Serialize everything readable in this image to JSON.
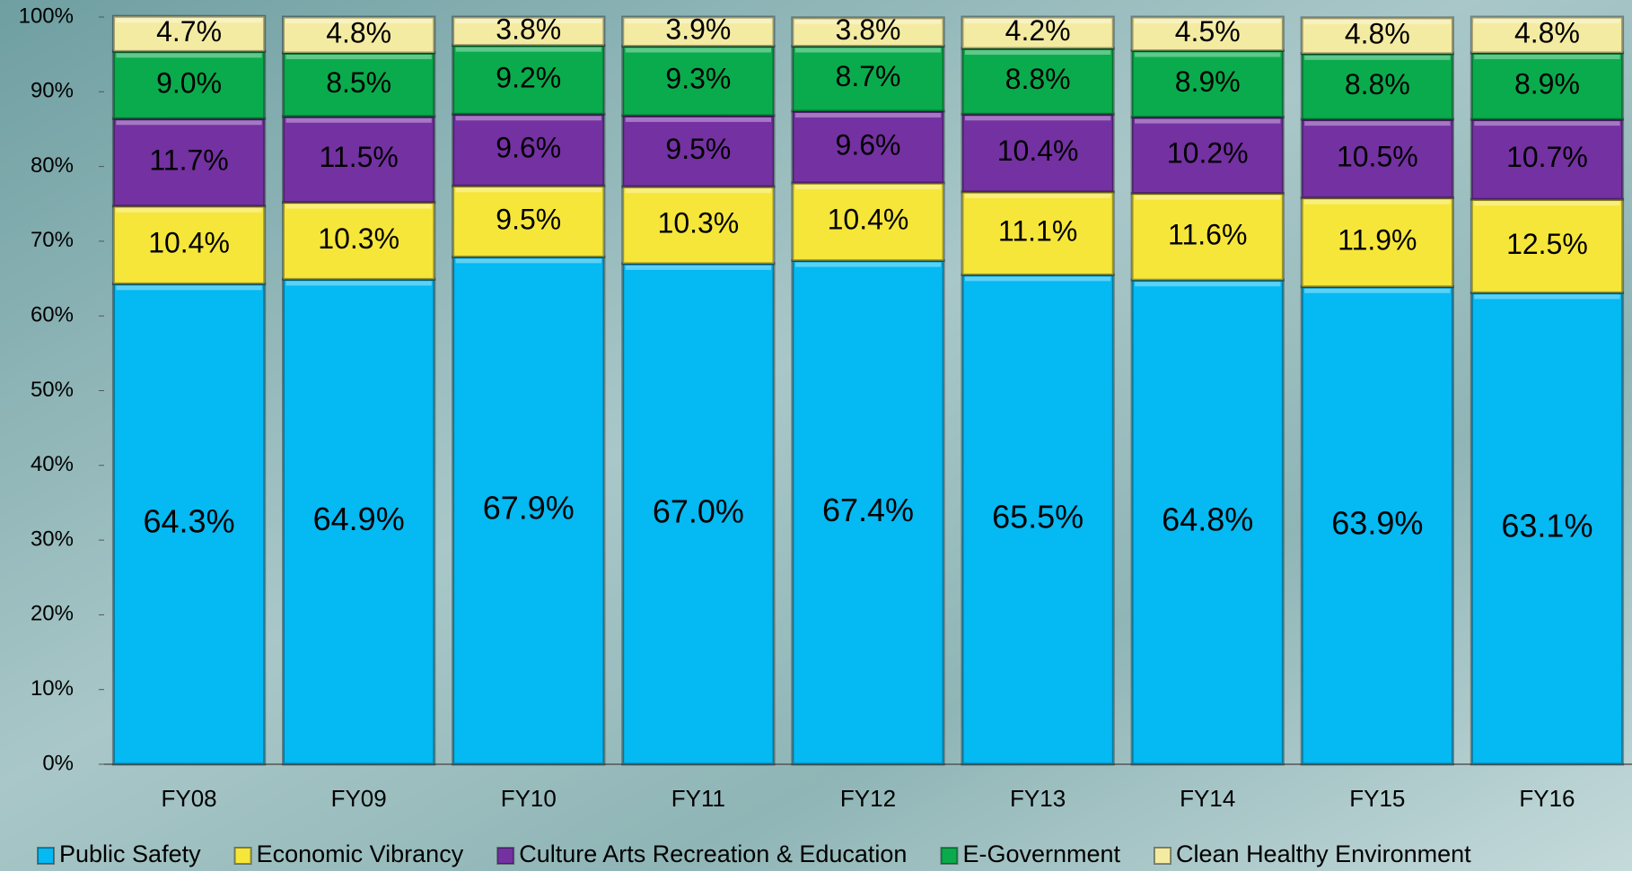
{
  "chart_data": {
    "type": "stacked_bar",
    "categories": [
      "FY08",
      "FY09",
      "FY10",
      "FY11",
      "FY12",
      "FY13",
      "FY14",
      "FY15",
      "FY16"
    ],
    "series": [
      {
        "name": "Public Safety",
        "color": "#05b9f2",
        "values": [
          64.3,
          64.9,
          67.9,
          67.0,
          67.4,
          65.5,
          64.8,
          63.9,
          63.1
        ],
        "value_labels": [
          "64.3%",
          "64.9%",
          "67.9%",
          "67.0%",
          "67.4%",
          "65.5%",
          "64.8%",
          "63.9%",
          "63.1%"
        ]
      },
      {
        "name": "Economic Vibrancy",
        "color": "#f6e63a",
        "values": [
          10.4,
          10.3,
          9.5,
          10.3,
          10.4,
          11.1,
          11.6,
          11.9,
          12.5
        ],
        "value_labels": [
          "10.4%",
          "10.3%",
          "9.5%",
          "10.3%",
          "10.4%",
          "11.1%",
          "11.6%",
          "11.9%",
          "12.5%"
        ]
      },
      {
        "name": "Culture Arts Recreation & Education",
        "color": "#7431a2",
        "values": [
          11.7,
          11.5,
          9.6,
          9.5,
          9.6,
          10.4,
          10.2,
          10.5,
          10.7
        ],
        "value_labels": [
          "11.7%",
          "11.5%",
          "9.6%",
          "9.5%",
          "9.6%",
          "10.4%",
          "10.2%",
          "10.5%",
          "10.7%"
        ]
      },
      {
        "name": "E-Government",
        "color": "#0aab4c",
        "values": [
          9.0,
          8.5,
          9.2,
          9.3,
          8.7,
          8.8,
          8.9,
          8.8,
          8.9
        ],
        "value_labels": [
          "9.0%",
          "8.5%",
          "9.2%",
          "9.3%",
          "8.7%",
          "8.8%",
          "8.9%",
          "8.8%",
          "8.9%"
        ]
      },
      {
        "name": "Clean Healthy Environment",
        "color": "#f4eba2",
        "values": [
          4.7,
          4.8,
          3.8,
          3.9,
          3.8,
          4.2,
          4.5,
          4.8,
          4.8
        ],
        "value_labels": [
          "4.7%",
          "4.8%",
          "3.8%",
          "3.9%",
          "3.8%",
          "4.2%",
          "4.5%",
          "4.8%",
          "4.8%"
        ]
      }
    ],
    "ylim": [
      0,
      100
    ],
    "yticks": [
      {
        "value": 0,
        "label": "0%"
      },
      {
        "value": 10,
        "label": "10%"
      },
      {
        "value": 20,
        "label": "20%"
      },
      {
        "value": 30,
        "label": "30%"
      },
      {
        "value": 40,
        "label": "40%"
      },
      {
        "value": 50,
        "label": "50%"
      },
      {
        "value": 60,
        "label": "60%"
      },
      {
        "value": 70,
        "label": "70%"
      },
      {
        "value": 80,
        "label": "80%"
      },
      {
        "value": 90,
        "label": "90%"
      },
      {
        "value": 100,
        "label": "100%"
      }
    ],
    "legend": "bottom"
  }
}
